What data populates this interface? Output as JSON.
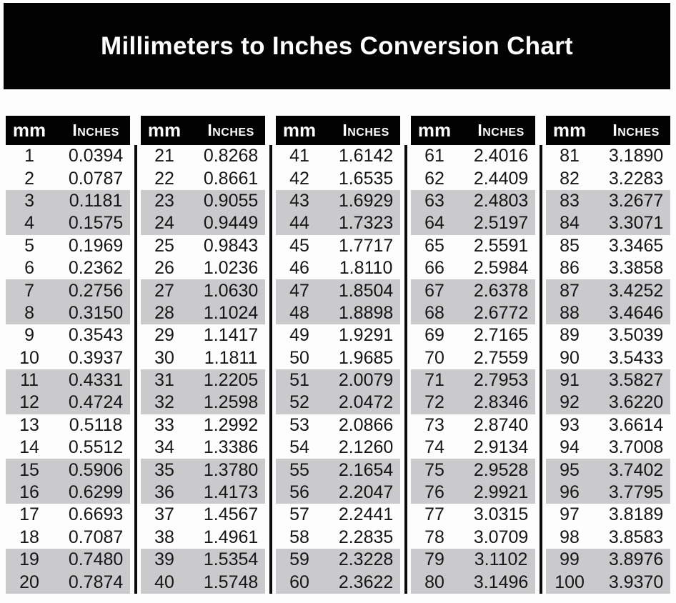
{
  "title": "Millimeters to Inches Conversion Chart",
  "table_headers": {
    "mm": "mm",
    "inches": "Inches"
  },
  "colors": {
    "page_bg": "#fdfdfd",
    "banner_bg": "#020202",
    "banner_text": "#ffffff",
    "header_bg": "#020202",
    "header_text": "#ffffff",
    "stripe": "#cacacc",
    "text": "#161616",
    "divider": "#0b0b0b"
  },
  "chart_data": {
    "type": "table",
    "title": "Millimeters to Inches Conversion Chart",
    "column_headers": [
      "mm",
      "Inches"
    ],
    "layout": "5 side-by-side two-column tables, 20 rows each, rows shaded gray in alternating pairs",
    "columns": [
      {
        "rows": [
          [
            "1",
            "0.0394"
          ],
          [
            "2",
            "0.0787"
          ],
          [
            "3",
            "0.1181"
          ],
          [
            "4",
            "0.1575"
          ],
          [
            "5",
            "0.1969"
          ],
          [
            "6",
            "0.2362"
          ],
          [
            "7",
            "0.2756"
          ],
          [
            "8",
            "0.3150"
          ],
          [
            "9",
            "0.3543"
          ],
          [
            "10",
            "0.3937"
          ],
          [
            "11",
            "0.4331"
          ],
          [
            "12",
            "0.4724"
          ],
          [
            "13",
            "0.5118"
          ],
          [
            "14",
            "0.5512"
          ],
          [
            "15",
            "0.5906"
          ],
          [
            "16",
            "0.6299"
          ],
          [
            "17",
            "0.6693"
          ],
          [
            "18",
            "0.7087"
          ],
          [
            "19",
            "0.7480"
          ],
          [
            "20",
            "0.7874"
          ]
        ]
      },
      {
        "rows": [
          [
            "21",
            "0.8268"
          ],
          [
            "22",
            "0.8661"
          ],
          [
            "23",
            "0.9055"
          ],
          [
            "24",
            "0.9449"
          ],
          [
            "25",
            "0.9843"
          ],
          [
            "26",
            "1.0236"
          ],
          [
            "27",
            "1.0630"
          ],
          [
            "28",
            "1.1024"
          ],
          [
            "29",
            "1.1417"
          ],
          [
            "30",
            "1.1811"
          ],
          [
            "31",
            "1.2205"
          ],
          [
            "32",
            "1.2598"
          ],
          [
            "33",
            "1.2992"
          ],
          [
            "34",
            "1.3386"
          ],
          [
            "35",
            "1.3780"
          ],
          [
            "36",
            "1.4173"
          ],
          [
            "37",
            "1.4567"
          ],
          [
            "38",
            "1.4961"
          ],
          [
            "39",
            "1.5354"
          ],
          [
            "40",
            "1.5748"
          ]
        ]
      },
      {
        "rows": [
          [
            "41",
            "1.6142"
          ],
          [
            "42",
            "1.6535"
          ],
          [
            "43",
            "1.6929"
          ],
          [
            "44",
            "1.7323"
          ],
          [
            "45",
            "1.7717"
          ],
          [
            "46",
            "1.8110"
          ],
          [
            "47",
            "1.8504"
          ],
          [
            "48",
            "1.8898"
          ],
          [
            "49",
            "1.9291"
          ],
          [
            "50",
            "1.9685"
          ],
          [
            "51",
            "2.0079"
          ],
          [
            "52",
            "2.0472"
          ],
          [
            "53",
            "2.0866"
          ],
          [
            "54",
            "2.1260"
          ],
          [
            "55",
            "2.1654"
          ],
          [
            "56",
            "2.2047"
          ],
          [
            "57",
            "2.2441"
          ],
          [
            "58",
            "2.2835"
          ],
          [
            "59",
            "2.3228"
          ],
          [
            "60",
            "2.3622"
          ]
        ]
      },
      {
        "rows": [
          [
            "61",
            "2.4016"
          ],
          [
            "62",
            "2.4409"
          ],
          [
            "63",
            "2.4803"
          ],
          [
            "64",
            "2.5197"
          ],
          [
            "65",
            "2.5591"
          ],
          [
            "66",
            "2.5984"
          ],
          [
            "67",
            "2.6378"
          ],
          [
            "68",
            "2.6772"
          ],
          [
            "69",
            "2.7165"
          ],
          [
            "70",
            "2.7559"
          ],
          [
            "71",
            "2.7953"
          ],
          [
            "72",
            "2.8346"
          ],
          [
            "73",
            "2.8740"
          ],
          [
            "74",
            "2.9134"
          ],
          [
            "75",
            "2.9528"
          ],
          [
            "76",
            "2.9921"
          ],
          [
            "77",
            "3.0315"
          ],
          [
            "78",
            "3.0709"
          ],
          [
            "79",
            "3.1102"
          ],
          [
            "80",
            "3.1496"
          ]
        ]
      },
      {
        "rows": [
          [
            "81",
            "3.1890"
          ],
          [
            "82",
            "3.2283"
          ],
          [
            "83",
            "3.2677"
          ],
          [
            "84",
            "3.3071"
          ],
          [
            "85",
            "3.3465"
          ],
          [
            "86",
            "3.3858"
          ],
          [
            "87",
            "3.4252"
          ],
          [
            "88",
            "3.4646"
          ],
          [
            "89",
            "3.5039"
          ],
          [
            "90",
            "3.5433"
          ],
          [
            "91",
            "3.5827"
          ],
          [
            "92",
            "3.6220"
          ],
          [
            "93",
            "3.6614"
          ],
          [
            "94",
            "3.7008"
          ],
          [
            "95",
            "3.7402"
          ],
          [
            "96",
            "3.7795"
          ],
          [
            "97",
            "3.8189"
          ],
          [
            "98",
            "3.8583"
          ],
          [
            "99",
            "3.8976"
          ],
          [
            "100",
            "3.9370"
          ]
        ]
      }
    ]
  }
}
